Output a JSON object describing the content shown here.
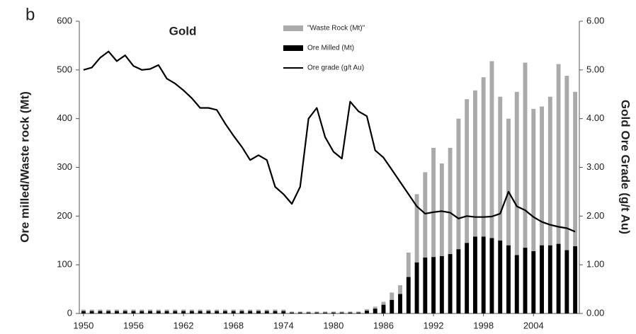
{
  "chart_data": {
    "type": "bar-line",
    "panel_label": "b",
    "title": "Gold",
    "y_label": "Ore milled/Waste rock (Mt)",
    "y2_label": "Gold Ore Grade (g/t Au)",
    "x": [
      1950,
      1951,
      1952,
      1953,
      1954,
      1955,
      1956,
      1957,
      1958,
      1959,
      1960,
      1961,
      1962,
      1963,
      1964,
      1965,
      1966,
      1967,
      1968,
      1969,
      1970,
      1971,
      1972,
      1973,
      1974,
      1975,
      1976,
      1977,
      1978,
      1979,
      1980,
      1981,
      1982,
      1983,
      1984,
      1985,
      1986,
      1987,
      1988,
      1989,
      1990,
      1991,
      1992,
      1993,
      1994,
      1995,
      1996,
      1997,
      1998,
      1999,
      2000,
      2001,
      2002,
      2003,
      2004,
      2005,
      2006,
      2007,
      2008,
      2009
    ],
    "xlim": [
      1949.5,
      2009.5
    ],
    "xticks": [
      1950,
      1956,
      1962,
      1968,
      1974,
      1980,
      1986,
      1992,
      1998,
      2004
    ],
    "ylim": [
      0,
      600
    ],
    "yticks": [
      0,
      100,
      200,
      300,
      400,
      500,
      600
    ],
    "y2lim": [
      0,
      6
    ],
    "y2ticks": [
      {
        "value": 0,
        "label": "0.00"
      },
      {
        "value": 1,
        "label": "1.00"
      },
      {
        "value": 2,
        "label": "2.00"
      },
      {
        "value": 3,
        "label": "3.00"
      },
      {
        "value": 4,
        "label": "4.00"
      },
      {
        "value": 5,
        "label": "5.00"
      },
      {
        "value": 6,
        "label": "6.00"
      }
    ],
    "series": [
      {
        "name": "Ore Milled (Mt)",
        "kind": "bar",
        "color": "#000000",
        "values": [
          5,
          5,
          5,
          5,
          5,
          5,
          5,
          5,
          5,
          5,
          5,
          5,
          5,
          5,
          5,
          5,
          5,
          5,
          5,
          5,
          5,
          5,
          5,
          5,
          5,
          2,
          2,
          2,
          2,
          2,
          2,
          2,
          2,
          2,
          6,
          10,
          18,
          28,
          40,
          75,
          105,
          115,
          116,
          118,
          122,
          132,
          145,
          158,
          158,
          155,
          150,
          140,
          120,
          135,
          128,
          140,
          140,
          143,
          130,
          138
        ]
      },
      {
        "name": "\"Waste Rock (Mt)\"",
        "kind": "bar",
        "color": "#aaaaaa",
        "values": [
          3,
          3,
          3,
          3,
          3,
          3,
          3,
          3,
          3,
          3,
          3,
          3,
          3,
          3,
          3,
          3,
          3,
          3,
          3,
          3,
          3,
          3,
          3,
          3,
          3,
          2,
          2,
          2,
          2,
          2,
          2,
          2,
          2,
          2,
          3,
          4,
          6,
          15,
          18,
          50,
          140,
          175,
          224,
          190,
          218,
          268,
          295,
          300,
          327,
          363,
          295,
          260,
          335,
          380,
          292,
          285,
          305,
          369,
          358,
          317
        ]
      },
      {
        "name": "Ore grade (g/t Au)",
        "kind": "line",
        "axis": "y2",
        "color": "#000000",
        "values": [
          5.0,
          5.05,
          5.25,
          5.38,
          5.18,
          5.3,
          5.08,
          5.0,
          5.02,
          5.1,
          4.82,
          4.72,
          4.58,
          4.42,
          4.22,
          4.22,
          4.18,
          3.9,
          3.65,
          3.42,
          3.15,
          3.25,
          3.15,
          2.6,
          2.45,
          2.25,
          2.6,
          4.0,
          4.22,
          3.62,
          3.32,
          3.18,
          4.35,
          4.15,
          4.05,
          3.35,
          3.2,
          2.95,
          2.7,
          2.45,
          2.2,
          2.05,
          2.08,
          2.1,
          2.07,
          1.95,
          2.0,
          1.98,
          1.98,
          1.99,
          2.05,
          2.5,
          2.2,
          2.12,
          1.98,
          1.88,
          1.82,
          1.78,
          1.75,
          1.68
        ]
      }
    ]
  }
}
